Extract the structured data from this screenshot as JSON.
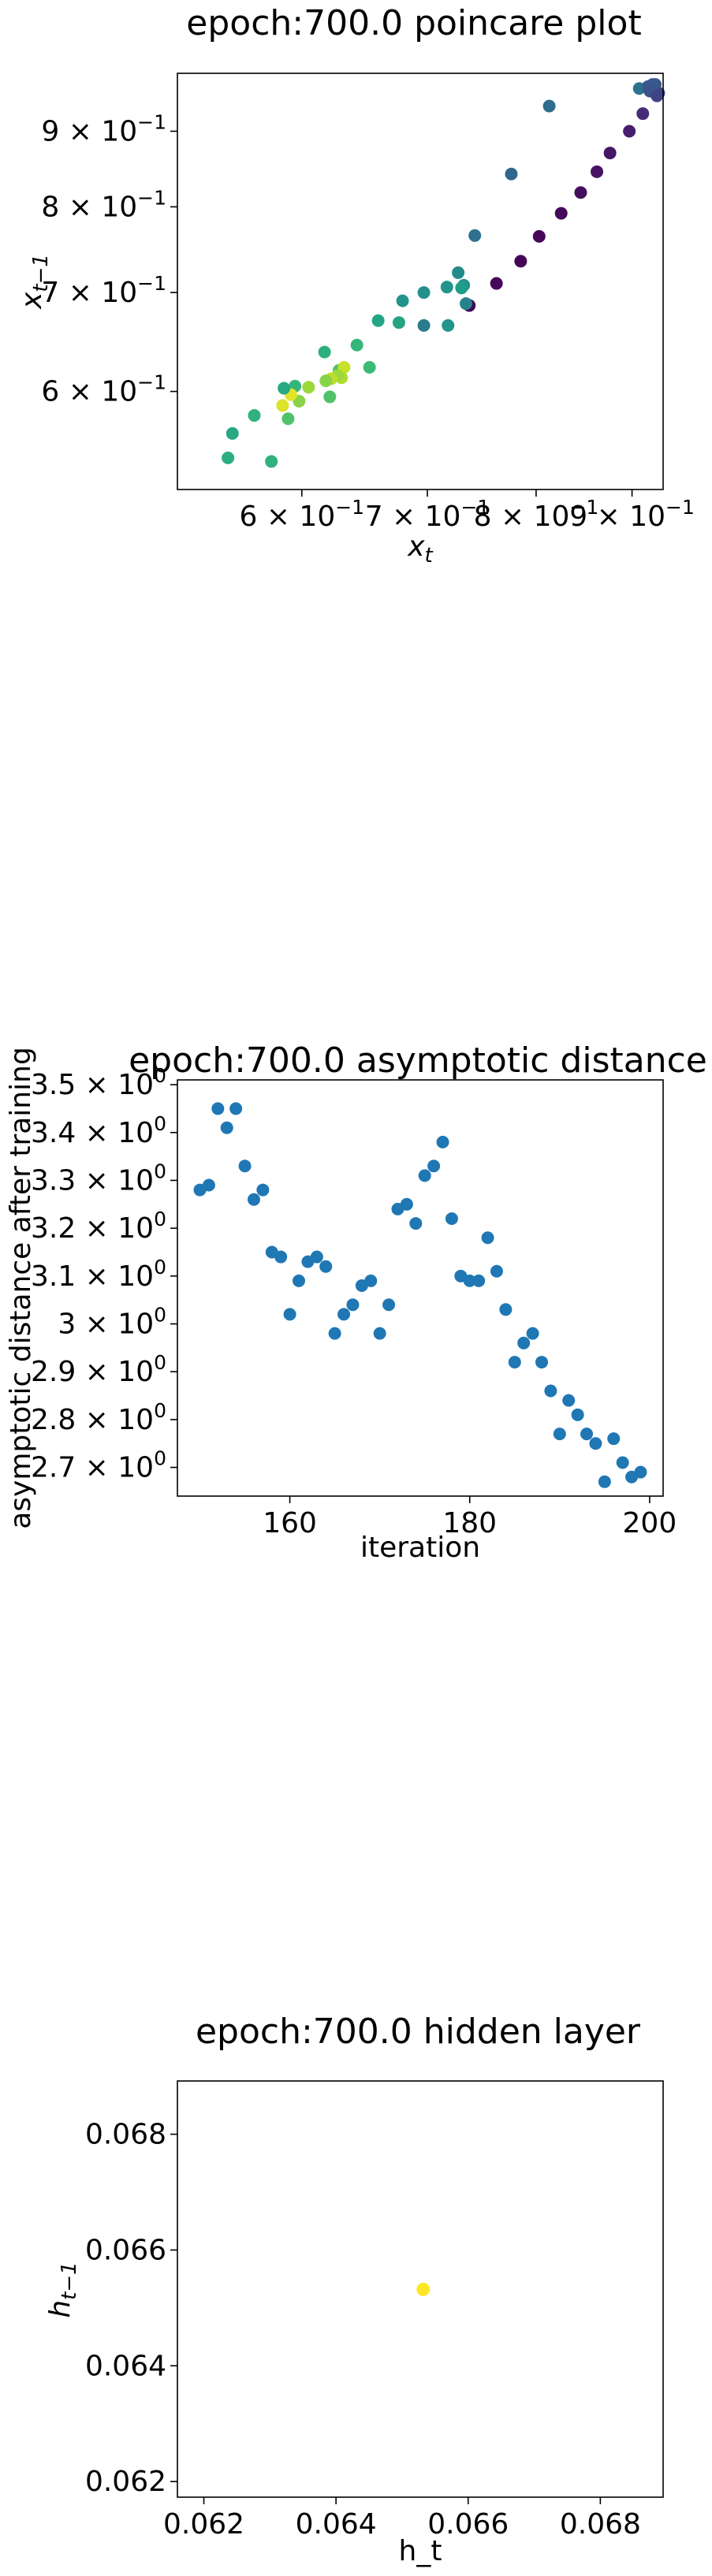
{
  "chart_data": [
    {
      "type": "scatter",
      "title": "epoch:700.0 poincare plot",
      "xlabel_base": "x",
      "xlabel_sub": "t",
      "ylabel_base": "x",
      "ylabel_sub": "t−1",
      "xscale": "log",
      "yscale": "log",
      "xlim": [
        0.515,
        0.935
      ],
      "ylim": [
        0.515,
        0.985
      ],
      "colormap": "viridis",
      "x_ticks": [
        {
          "value": 0.6,
          "label": "6 × 10",
          "exp": "−1"
        },
        {
          "value": 0.7,
          "label": "7 × 10",
          "exp": "−1"
        },
        {
          "value": 0.8,
          "label": "8 × 10",
          "exp": "−1"
        },
        {
          "value": 0.9,
          "label": "9 × 10",
          "exp": "−1"
        }
      ],
      "y_ticks": [
        {
          "value": 0.6,
          "label": "6 × 10",
          "exp": "−1"
        },
        {
          "value": 0.7,
          "label": "7 × 10",
          "exp": "−1"
        },
        {
          "value": 0.8,
          "label": "8 × 10",
          "exp": "−1"
        },
        {
          "value": 0.9,
          "label": "9 × 10",
          "exp": "−1"
        }
      ],
      "points": [
        {
          "x": 0.908,
          "y": 0.962,
          "c": 0.38
        },
        {
          "x": 0.926,
          "y": 0.968,
          "c": 0.25
        },
        {
          "x": 0.93,
          "y": 0.955,
          "c": 0.22
        },
        {
          "x": 0.923,
          "y": 0.968,
          "c": 0.28
        },
        {
          "x": 0.918,
          "y": 0.965,
          "c": 0.27
        },
        {
          "x": 0.92,
          "y": 0.958,
          "c": 0.26
        },
        {
          "x": 0.928,
          "y": 0.951,
          "c": 0.2
        },
        {
          "x": 0.912,
          "y": 0.925,
          "c": 0.12
        },
        {
          "x": 0.897,
          "y": 0.9,
          "c": 0.08
        },
        {
          "x": 0.876,
          "y": 0.87,
          "c": 0.06
        },
        {
          "x": 0.862,
          "y": 0.845,
          "c": 0.05
        },
        {
          "x": 0.845,
          "y": 0.818,
          "c": 0.04
        },
        {
          "x": 0.825,
          "y": 0.792,
          "c": 0.02
        },
        {
          "x": 0.803,
          "y": 0.764,
          "c": 0.02
        },
        {
          "x": 0.785,
          "y": 0.735,
          "c": 0.01
        },
        {
          "x": 0.762,
          "y": 0.71,
          "c": 0.02
        },
        {
          "x": 0.737,
          "y": 0.686,
          "c": 0.01
        },
        {
          "x": 0.813,
          "y": 0.936,
          "c": 0.35
        },
        {
          "x": 0.776,
          "y": 0.842,
          "c": 0.33
        },
        {
          "x": 0.742,
          "y": 0.765,
          "c": 0.37
        },
        {
          "x": 0.727,
          "y": 0.722,
          "c": 0.48
        },
        {
          "x": 0.732,
          "y": 0.708,
          "c": 0.5
        },
        {
          "x": 0.734,
          "y": 0.688,
          "c": 0.45
        },
        {
          "x": 0.73,
          "y": 0.705,
          "c": 0.55
        },
        {
          "x": 0.717,
          "y": 0.706,
          "c": 0.52
        },
        {
          "x": 0.718,
          "y": 0.665,
          "c": 0.52
        },
        {
          "x": 0.697,
          "y": 0.665,
          "c": 0.42
        },
        {
          "x": 0.697,
          "y": 0.7,
          "c": 0.5
        },
        {
          "x": 0.679,
          "y": 0.691,
          "c": 0.52
        },
        {
          "x": 0.676,
          "y": 0.668,
          "c": 0.58
        },
        {
          "x": 0.659,
          "y": 0.67,
          "c": 0.58
        },
        {
          "x": 0.652,
          "y": 0.623,
          "c": 0.68
        },
        {
          "x": 0.642,
          "y": 0.645,
          "c": 0.66
        },
        {
          "x": 0.628,
          "y": 0.62,
          "c": 0.72
        },
        {
          "x": 0.632,
          "y": 0.623,
          "c": 0.92
        },
        {
          "x": 0.63,
          "y": 0.613,
          "c": 0.88
        },
        {
          "x": 0.627,
          "y": 0.615,
          "c": 0.85
        },
        {
          "x": 0.622,
          "y": 0.612,
          "c": 0.9
        },
        {
          "x": 0.618,
          "y": 0.61,
          "c": 0.82
        },
        {
          "x": 0.617,
          "y": 0.638,
          "c": 0.63
        },
        {
          "x": 0.621,
          "y": 0.595,
          "c": 0.72
        },
        {
          "x": 0.605,
          "y": 0.604,
          "c": 0.85
        },
        {
          "x": 0.598,
          "y": 0.591,
          "c": 0.82
        },
        {
          "x": 0.595,
          "y": 0.605,
          "c": 0.66
        },
        {
          "x": 0.592,
          "y": 0.597,
          "c": 0.96
        },
        {
          "x": 0.586,
          "y": 0.587,
          "c": 0.95
        },
        {
          "x": 0.59,
          "y": 0.575,
          "c": 0.72
        },
        {
          "x": 0.587,
          "y": 0.603,
          "c": 0.6
        },
        {
          "x": 0.566,
          "y": 0.578,
          "c": 0.64
        },
        {
          "x": 0.551,
          "y": 0.562,
          "c": 0.6
        },
        {
          "x": 0.548,
          "y": 0.541,
          "c": 0.62
        },
        {
          "x": 0.578,
          "y": 0.538,
          "c": 0.64
        }
      ]
    },
    {
      "type": "scatter",
      "title": "epoch:700.0 asymptotic distance",
      "xlabel": "iteration",
      "ylabel": "asymptotic distance after training",
      "xlim": [
        147.5,
        201.5
      ],
      "ylim": [
        2.64,
        3.51
      ],
      "color": "#1f77b4",
      "x_ticks": [
        {
          "value": 160,
          "label": "160"
        },
        {
          "value": 180,
          "label": "180"
        },
        {
          "value": 200,
          "label": "200"
        }
      ],
      "y_ticks": [
        {
          "value": 2.7,
          "label": "2.7 × 10",
          "exp": "0"
        },
        {
          "value": 2.8,
          "label": "2.8 × 10",
          "exp": "0"
        },
        {
          "value": 2.9,
          "label": "2.9 × 10",
          "exp": "0"
        },
        {
          "value": 3.0,
          "label": "3 × 10",
          "exp": "0"
        },
        {
          "value": 3.1,
          "label": "3.1 × 10",
          "exp": "0"
        },
        {
          "value": 3.2,
          "label": "3.2 × 10",
          "exp": "0"
        },
        {
          "value": 3.3,
          "label": "3.3 × 10",
          "exp": "0"
        },
        {
          "value": 3.4,
          "label": "3.4 × 10",
          "exp": "0"
        },
        {
          "value": 3.5,
          "label": "3.5 × 10",
          "exp": "0"
        }
      ],
      "x": [
        150,
        151,
        152,
        153,
        154,
        155,
        156,
        157,
        158,
        159,
        160,
        161,
        162,
        163,
        164,
        165,
        166,
        167,
        168,
        169,
        170,
        171,
        172,
        173,
        174,
        175,
        176,
        177,
        178,
        179,
        180,
        181,
        182,
        183,
        184,
        185,
        186,
        187,
        188,
        189,
        190,
        191,
        192,
        193,
        194,
        195,
        196,
        197,
        198,
        199
      ],
      "y": [
        3.28,
        3.29,
        3.45,
        3.41,
        3.45,
        3.33,
        3.26,
        3.28,
        3.15,
        3.14,
        3.02,
        3.09,
        3.13,
        3.14,
        3.12,
        2.98,
        3.02,
        3.04,
        3.08,
        3.09,
        2.98,
        3.04,
        3.24,
        3.25,
        3.21,
        3.31,
        3.33,
        3.38,
        3.22,
        3.1,
        3.09,
        3.09,
        3.18,
        3.11,
        3.03,
        2.92,
        2.96,
        2.98,
        2.92,
        2.86,
        2.77,
        2.84,
        2.81,
        2.77,
        2.75,
        2.67,
        2.76,
        2.71,
        2.68,
        2.69
      ]
    },
    {
      "type": "scatter",
      "title": "epoch:700.0 hidden layer",
      "xlabel": "h_t",
      "ylabel_base": "h",
      "ylabel_sub": "t−1",
      "xlim": [
        0.0616,
        0.06895
      ],
      "ylim": [
        0.06173,
        0.06892
      ],
      "color": "#fde725",
      "x_ticks": [
        {
          "value": 0.062,
          "label": "0.062"
        },
        {
          "value": 0.064,
          "label": "0.064"
        },
        {
          "value": 0.066,
          "label": "0.066"
        },
        {
          "value": 0.068,
          "label": "0.068"
        }
      ],
      "y_ticks": [
        {
          "value": 0.062,
          "label": "0.062"
        },
        {
          "value": 0.064,
          "label": "0.064"
        },
        {
          "value": 0.066,
          "label": "0.066"
        },
        {
          "value": 0.068,
          "label": "0.068"
        }
      ],
      "points": [
        {
          "x": 0.06532,
          "y": 0.06532
        }
      ]
    }
  ]
}
